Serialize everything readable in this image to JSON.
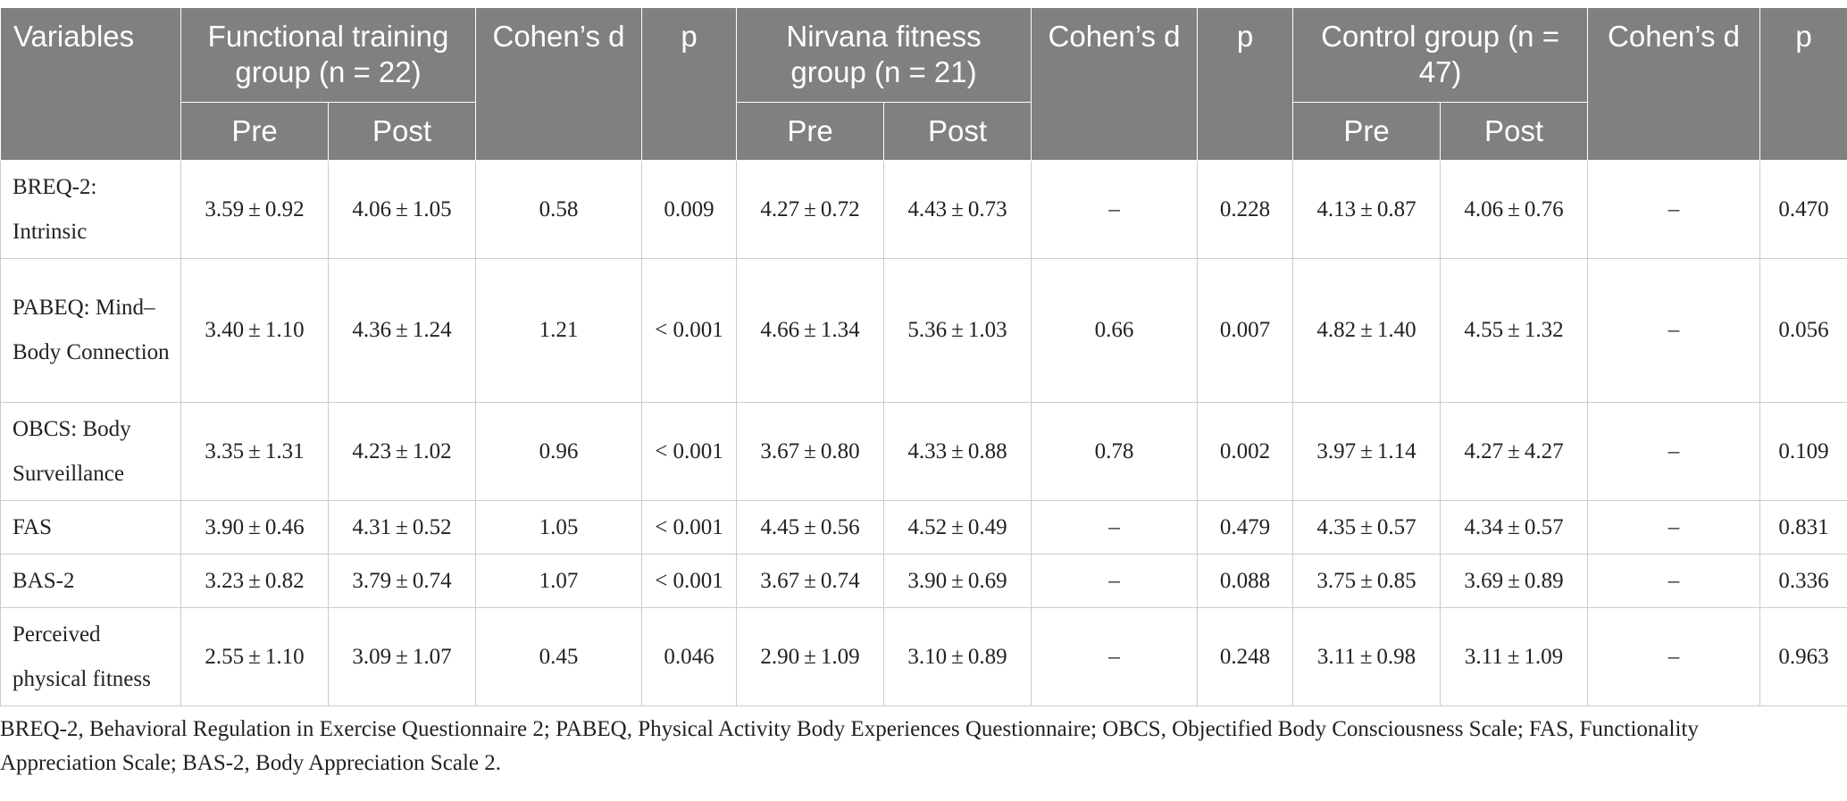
{
  "header": {
    "variables": "Variables",
    "groups": [
      {
        "name": "Functional training group (n = 22)",
        "pre": "Pre",
        "post": "Post"
      },
      {
        "name": "Nirvana fitness group (n = 21)",
        "pre": "Pre",
        "post": "Post"
      },
      {
        "name": "Control group (n = 47)",
        "pre": "Pre",
        "post": "Post"
      }
    ],
    "cohens_d": "Cohen’s d",
    "p": "p"
  },
  "rows": [
    {
      "variable": "BREQ-2: Intrinsic",
      "cells": [
        "3.59 ± 0.92",
        "4.06 ± 1.05",
        "0.58",
        "0.009",
        "4.27 ± 0.72",
        "4.43 ± 0.73",
        "–",
        "0.228",
        "4.13 ± 0.87",
        "4.06 ± 0.76",
        "–",
        "0.470"
      ]
    },
    {
      "variable": "PABEQ: Mind–Body Connection",
      "cells": [
        "3.40 ± 1.10",
        "4.36 ± 1.24",
        "1.21",
        "< 0.001",
        "4.66 ± 1.34",
        "5.36 ± 1.03",
        "0.66",
        "0.007",
        "4.82 ± 1.40",
        "4.55 ± 1.32",
        "–",
        "0.056"
      ]
    },
    {
      "variable": "OBCS: Body Surveillance",
      "cells": [
        "3.35 ± 1.31",
        "4.23 ± 1.02",
        "0.96",
        "< 0.001",
        "3.67 ± 0.80",
        "4.33 ± 0.88",
        "0.78",
        "0.002",
        "3.97 ± 1.14",
        "4.27 ± 4.27",
        "–",
        "0.109"
      ]
    },
    {
      "variable": "FAS",
      "cells": [
        "3.90 ± 0.46",
        "4.31 ± 0.52",
        "1.05",
        "< 0.001",
        "4.45 ± 0.56",
        "4.52 ± 0.49",
        "–",
        "0.479",
        "4.35 ± 0.57",
        "4.34 ± 0.57",
        "–",
        "0.831"
      ]
    },
    {
      "variable": "BAS-2",
      "cells": [
        "3.23 ± 0.82",
        "3.79 ± 0.74",
        "1.07",
        "< 0.001",
        "3.67 ± 0.74",
        "3.90 ± 0.69",
        "–",
        "0.088",
        "3.75 ± 0.85",
        "3.69 ± 0.89",
        "–",
        "0.336"
      ]
    },
    {
      "variable": "Perceived physical fitness",
      "cells": [
        "2.55 ± 1.10",
        "3.09 ± 1.07",
        "0.45",
        "0.046",
        "2.90 ± 1.09",
        "3.10 ± 0.89",
        "–",
        "0.248",
        "3.11 ± 0.98",
        "3.11 ± 1.09",
        "–",
        "0.963"
      ]
    }
  ],
  "footnote": "BREQ-2, Behavioral Regulation in Exercise Questionnaire 2; PABEQ, Physical Activity Body Experiences Questionnaire; OBCS, Objectified Body Consciousness Scale; FAS, Functionality Appreciation Scale; BAS-2, Body Appreciation Scale 2."
}
